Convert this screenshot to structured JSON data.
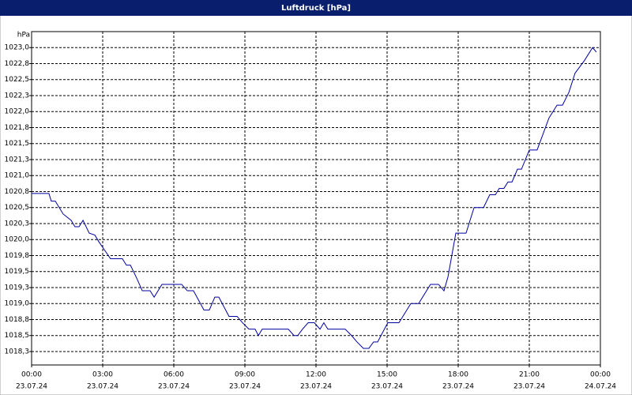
{
  "chart_data": {
    "type": "line",
    "title": "Luftdruck [hPa]",
    "y_unit": "hPa",
    "x": [
      0,
      0.73,
      0.83,
      1.0,
      1.33,
      1.67,
      1.83,
      2.0,
      2.17,
      2.43,
      2.67,
      2.83,
      3.33,
      3.83,
      4.0,
      4.17,
      4.43,
      4.67,
      5.0,
      5.17,
      5.5,
      6.33,
      6.57,
      6.83,
      7.27,
      7.5,
      7.73,
      7.9,
      8.33,
      8.67,
      8.9,
      9.17,
      9.43,
      9.57,
      9.73,
      10.83,
      11.07,
      11.23,
      11.43,
      11.67,
      11.93,
      12.17,
      12.33,
      12.5,
      13.23,
      13.5,
      13.73,
      14.0,
      14.23,
      14.43,
      14.6,
      15.03,
      15.5,
      16.0,
      16.33,
      16.83,
      17.17,
      17.4,
      17.57,
      17.9,
      18.33,
      18.67,
      19.07,
      19.33,
      19.57,
      19.73,
      19.93,
      20.1,
      20.27,
      20.5,
      20.67,
      21.0,
      21.33,
      21.83,
      22.17,
      22.4,
      22.67,
      22.93,
      23.33,
      23.67,
      23.83
    ],
    "series": [
      {
        "name": "Luftdruck",
        "color": "#0000a0",
        "values": [
          1020.72,
          1020.72,
          1020.6,
          1020.6,
          1020.4,
          1020.3,
          1020.2,
          1020.2,
          1020.3,
          1020.1,
          1020.07,
          1019.97,
          1019.7,
          1019.7,
          1019.6,
          1019.6,
          1019.4,
          1019.2,
          1019.2,
          1019.1,
          1019.3,
          1019.3,
          1019.2,
          1019.2,
          1018.9,
          1018.9,
          1019.1,
          1019.1,
          1018.8,
          1018.8,
          1018.7,
          1018.6,
          1018.6,
          1018.5,
          1018.6,
          1018.6,
          1018.5,
          1018.5,
          1018.6,
          1018.7,
          1018.7,
          1018.6,
          1018.7,
          1018.6,
          1018.6,
          1018.5,
          1018.4,
          1018.3,
          1018.3,
          1018.4,
          1018.4,
          1018.7,
          1018.7,
          1019.0,
          1019.0,
          1019.3,
          1019.3,
          1019.2,
          1019.42,
          1020.1,
          1020.1,
          1020.5,
          1020.5,
          1020.7,
          1020.7,
          1020.8,
          1020.8,
          1020.9,
          1020.9,
          1021.1,
          1021.1,
          1021.4,
          1021.4,
          1021.9,
          1022.1,
          1022.1,
          1022.3,
          1022.6,
          1022.8,
          1023.0,
          1022.93
        ]
      }
    ],
    "xlim": [
      0,
      24
    ],
    "xticks": [
      {
        "value": 0,
        "label": "00:00",
        "date": "23.07.24"
      },
      {
        "value": 3,
        "label": "03:00",
        "date": "23.07.24"
      },
      {
        "value": 6,
        "label": "06:00",
        "date": "23.07.24"
      },
      {
        "value": 9,
        "label": "09:00",
        "date": "23.07.24"
      },
      {
        "value": 12,
        "label": "12:00",
        "date": "23.07.24"
      },
      {
        "value": 15,
        "label": "15:00",
        "date": "23.07.24"
      },
      {
        "value": 18,
        "label": "18:00",
        "date": "23.07.24"
      },
      {
        "value": 21,
        "label": "21:00",
        "date": "23.07.24"
      },
      {
        "value": 24,
        "label": "00:00",
        "date": "24.07.24"
      }
    ],
    "ylim": [
      1018.04,
      1023.25
    ],
    "yticks": [
      {
        "value": 1023.0,
        "label": "1023,0"
      },
      {
        "value": 1022.75,
        "label": "1022,8"
      },
      {
        "value": 1022.5,
        "label": "1022,5"
      },
      {
        "value": 1022.25,
        "label": "1022,3"
      },
      {
        "value": 1022.0,
        "label": "1022,0"
      },
      {
        "value": 1021.75,
        "label": "1021,8"
      },
      {
        "value": 1021.5,
        "label": "1021,5"
      },
      {
        "value": 1021.25,
        "label": "1021,3"
      },
      {
        "value": 1021.0,
        "label": "1021,0"
      },
      {
        "value": 1020.75,
        "label": "1020,8"
      },
      {
        "value": 1020.5,
        "label": "1020,5"
      },
      {
        "value": 1020.25,
        "label": "1020,3"
      },
      {
        "value": 1020.0,
        "label": "1020,0"
      },
      {
        "value": 1019.75,
        "label": "1019,8"
      },
      {
        "value": 1019.5,
        "label": "1019,5"
      },
      {
        "value": 1019.25,
        "label": "1019,3"
      },
      {
        "value": 1019.0,
        "label": "1019,0"
      },
      {
        "value": 1018.75,
        "label": "1018,8"
      },
      {
        "value": 1018.5,
        "label": "1018,5"
      },
      {
        "value": 1018.25,
        "label": "1018,3"
      }
    ],
    "grid": true
  }
}
